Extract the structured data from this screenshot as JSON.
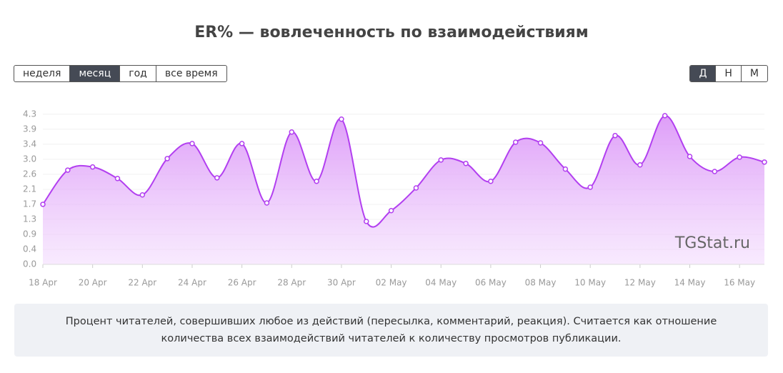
{
  "chart_data": {
    "type": "line",
    "title": "ER% — вовлеченность по взаимодействиям",
    "x": [
      "18 Apr",
      null,
      "20 Apr",
      null,
      "22 Apr",
      null,
      "24 Apr",
      null,
      "26 Apr",
      null,
      "28 Apr",
      null,
      "30 Apr",
      null,
      "02 May",
      null,
      "04 May",
      null,
      "06 May",
      null,
      "08 May",
      null,
      "10 May",
      null,
      "12 May",
      null,
      "14 May",
      null,
      "16 May",
      null
    ],
    "series": [
      {
        "name": "ER%",
        "color": "#b23ff0",
        "values": [
          1.72,
          2.7,
          2.79,
          2.46,
          1.99,
          3.03,
          3.46,
          2.48,
          3.46,
          1.76,
          3.79,
          2.38,
          4.16,
          1.23,
          1.54,
          2.19,
          2.99,
          2.89,
          2.38,
          3.5,
          3.48,
          2.73,
          2.21,
          3.69,
          2.85,
          4.26,
          3.09,
          2.66,
          3.07,
          2.93
        ]
      }
    ],
    "ylim": [
      0,
      4.4
    ],
    "yticks": [
      {
        "value": 0,
        "label": "0.0"
      },
      {
        "value": 0.43,
        "label": "0.4"
      },
      {
        "value": 0.86,
        "label": "0.9"
      },
      {
        "value": 1.29,
        "label": "1.3"
      },
      {
        "value": 1.72,
        "label": "1.7"
      },
      {
        "value": 2.15,
        "label": "2.1"
      },
      {
        "value": 2.58,
        "label": "2.6"
      },
      {
        "value": 3.01,
        "label": "3.0"
      },
      {
        "value": 3.44,
        "label": "3.4"
      },
      {
        "value": 3.87,
        "label": "3.9"
      },
      {
        "value": 4.3,
        "label": "4.3"
      }
    ],
    "grid": true
  },
  "period_buttons": [
    "неделя",
    "месяц",
    "год",
    "все время"
  ],
  "period_active": 1,
  "scale_buttons": [
    "Д",
    "Н",
    "М"
  ],
  "scale_active": 0,
  "watermark": "TGStat.ru",
  "description": "Процент читателей, совершивших любое из действий (пересылка, комментарий, реакция). Считается как отношение количества всех взаимодействий читателей к количеству просмотров публикации."
}
